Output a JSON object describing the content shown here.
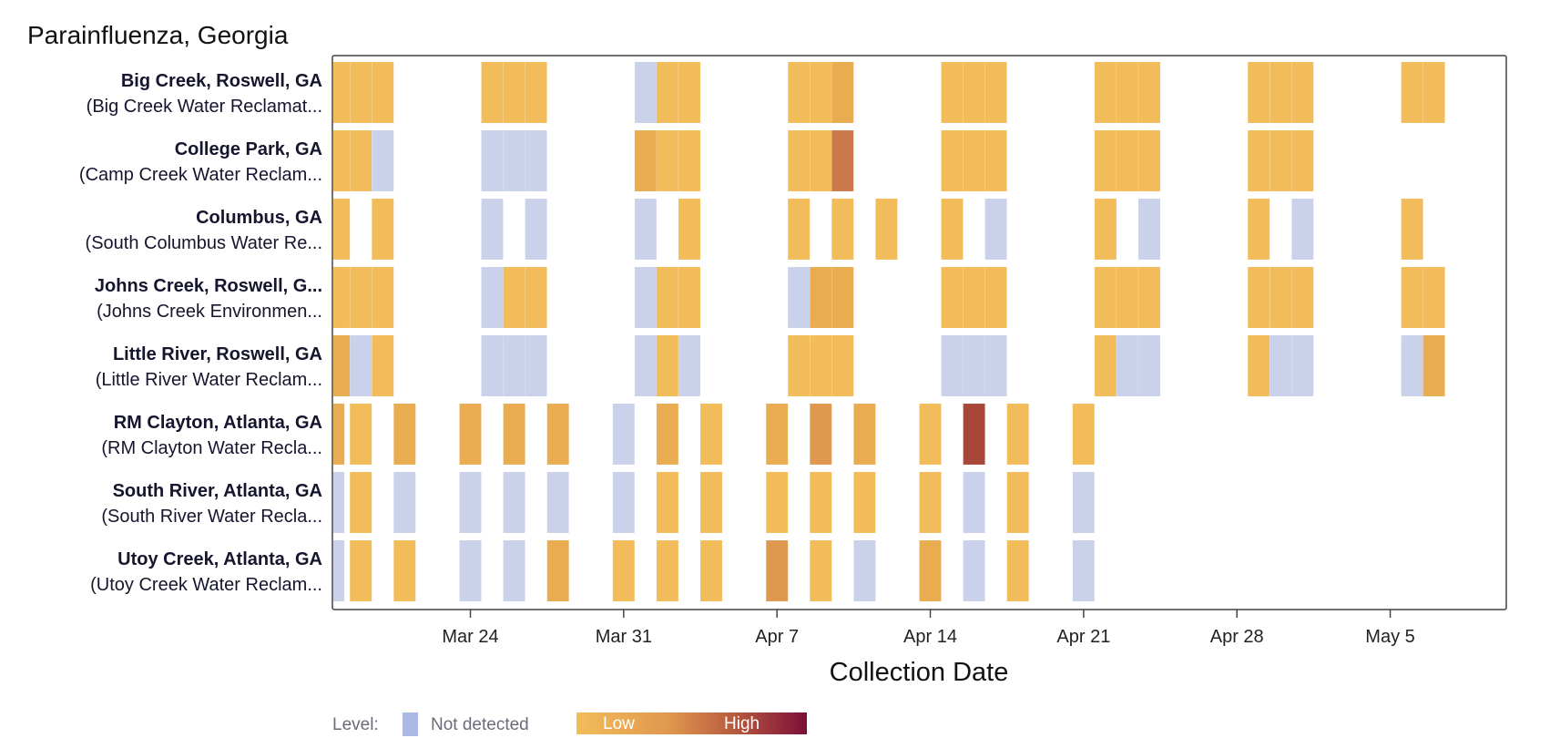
{
  "chart_data": {
    "type": "heatmap",
    "title": "Parainfluenza, Georgia",
    "xlabel": "Collection Date",
    "ylabel": "",
    "x_ticks": [
      "Mar 24",
      "Mar 31",
      "Apr 7",
      "Apr 14",
      "Apr 21",
      "Apr 28",
      "May 5"
    ],
    "x_range_days": [
      -6.3,
      47.3
    ],
    "x_origin": "Mar 24",
    "legend": {
      "label": "Level:",
      "not_detected": "Not detected",
      "low": "Low",
      "high": "High"
    },
    "colors": {
      "not_detected": "#c9d2ea",
      "low": "#f2bc5a",
      "mid1": "#e9ac50",
      "mid2": "#e09850",
      "mid3": "#c9794a",
      "high": "#a8463a",
      "legend_nd": "#a9b9e3",
      "legend_high": "#7b0f3a",
      "frame": "#444444"
    },
    "sites": [
      {
        "name": "Big Creek, Roswell, GA",
        "facility": "(Big Creek Water Reclamat...",
        "cells": [
          [
            -6,
            1
          ],
          [
            -5,
            1
          ],
          [
            -4,
            1
          ],
          [
            1,
            1
          ],
          [
            2,
            1
          ],
          [
            3,
            1
          ],
          [
            8,
            0
          ],
          [
            9,
            1
          ],
          [
            10,
            1
          ],
          [
            15,
            1
          ],
          [
            16,
            1
          ],
          [
            17,
            2
          ],
          [
            22,
            1
          ],
          [
            23,
            1
          ],
          [
            24,
            1
          ],
          [
            29,
            1
          ],
          [
            30,
            1
          ],
          [
            31,
            1
          ],
          [
            36,
            1
          ],
          [
            37,
            1
          ],
          [
            38,
            1
          ],
          [
            43,
            1
          ],
          [
            44,
            1
          ]
        ]
      },
      {
        "name": "College Park, GA",
        "facility": "(Camp Creek Water Reclam...",
        "cells": [
          [
            -6,
            1
          ],
          [
            -5,
            1
          ],
          [
            -4,
            0
          ],
          [
            1,
            0
          ],
          [
            2,
            0
          ],
          [
            3,
            0
          ],
          [
            8,
            2
          ],
          [
            9,
            1
          ],
          [
            10,
            1
          ],
          [
            15,
            1
          ],
          [
            16,
            1
          ],
          [
            17,
            4
          ],
          [
            22,
            1
          ],
          [
            23,
            1
          ],
          [
            24,
            1
          ],
          [
            29,
            1
          ],
          [
            30,
            1
          ],
          [
            31,
            1
          ],
          [
            36,
            1
          ],
          [
            37,
            1
          ],
          [
            38,
            1
          ]
        ]
      },
      {
        "name": "Columbus, GA",
        "facility": "(South Columbus Water Re...",
        "cells": [
          [
            -6,
            1
          ],
          [
            -4,
            1
          ],
          [
            1,
            0
          ],
          [
            3,
            0
          ],
          [
            8,
            0
          ],
          [
            10,
            1
          ],
          [
            15,
            1
          ],
          [
            17,
            1
          ],
          [
            19,
            1
          ],
          [
            22,
            1
          ],
          [
            24,
            0
          ],
          [
            29,
            1
          ],
          [
            31,
            0
          ],
          [
            36,
            1
          ],
          [
            38,
            0
          ],
          [
            43,
            1
          ]
        ]
      },
      {
        "name": "Johns Creek, Roswell, G...",
        "facility": "(Johns Creek Environmen...",
        "cells": [
          [
            -6,
            1
          ],
          [
            -5,
            1
          ],
          [
            -4,
            1
          ],
          [
            1,
            0
          ],
          [
            2,
            1
          ],
          [
            3,
            1
          ],
          [
            8,
            0
          ],
          [
            9,
            1
          ],
          [
            10,
            1
          ],
          [
            15,
            0
          ],
          [
            16,
            2
          ],
          [
            17,
            2
          ],
          [
            22,
            1
          ],
          [
            23,
            1
          ],
          [
            24,
            1
          ],
          [
            29,
            1
          ],
          [
            30,
            1
          ],
          [
            31,
            1
          ],
          [
            36,
            1
          ],
          [
            37,
            1
          ],
          [
            38,
            1
          ],
          [
            43,
            1
          ],
          [
            44,
            1
          ]
        ]
      },
      {
        "name": "Little River, Roswell, GA",
        "facility": "(Little River Water Reclam...",
        "cells": [
          [
            -6,
            2
          ],
          [
            -5,
            0
          ],
          [
            -4,
            1
          ],
          [
            1,
            0
          ],
          [
            2,
            0
          ],
          [
            3,
            0
          ],
          [
            8,
            0
          ],
          [
            9,
            1
          ],
          [
            10,
            0
          ],
          [
            15,
            1
          ],
          [
            16,
            1
          ],
          [
            17,
            1
          ],
          [
            22,
            0
          ],
          [
            23,
            0
          ],
          [
            24,
            0
          ],
          [
            29,
            1
          ],
          [
            30,
            0
          ],
          [
            31,
            0
          ],
          [
            36,
            1
          ],
          [
            37,
            0
          ],
          [
            38,
            0
          ],
          [
            43,
            0
          ],
          [
            44,
            2
          ]
        ]
      },
      {
        "name": "RM Clayton, Atlanta, GA",
        "facility": "(RM Clayton Water Recla...",
        "cells": [
          [
            -6.25,
            2
          ],
          [
            -5,
            1
          ],
          [
            -3,
            2
          ],
          [
            0,
            2
          ],
          [
            2,
            2
          ],
          [
            4,
            2
          ],
          [
            7,
            0
          ],
          [
            9,
            2
          ],
          [
            11,
            1
          ],
          [
            14,
            2
          ],
          [
            16,
            3
          ],
          [
            18,
            2
          ],
          [
            21,
            1
          ],
          [
            23,
            5
          ],
          [
            25,
            1
          ],
          [
            28,
            1
          ]
        ]
      },
      {
        "name": "South River, Atlanta, GA",
        "facility": "(South River Water Recla...",
        "cells": [
          [
            -6.25,
            0
          ],
          [
            -5,
            1
          ],
          [
            -3,
            0
          ],
          [
            0,
            0
          ],
          [
            2,
            0
          ],
          [
            4,
            0
          ],
          [
            7,
            0
          ],
          [
            9,
            1
          ],
          [
            11,
            1
          ],
          [
            14,
            1
          ],
          [
            16,
            1
          ],
          [
            18,
            1
          ],
          [
            21,
            1
          ],
          [
            23,
            0
          ],
          [
            25,
            1
          ],
          [
            28,
            0
          ]
        ]
      },
      {
        "name": "Utoy Creek, Atlanta, GA",
        "facility": "(Utoy Creek Water Reclam...",
        "cells": [
          [
            -6.25,
            0
          ],
          [
            -5,
            1
          ],
          [
            -3,
            1
          ],
          [
            0,
            0
          ],
          [
            2,
            0
          ],
          [
            4,
            2
          ],
          [
            7,
            1
          ],
          [
            9,
            1
          ],
          [
            11,
            1
          ],
          [
            14,
            3
          ],
          [
            16,
            1
          ],
          [
            18,
            0
          ],
          [
            21,
            2
          ],
          [
            23,
            0
          ],
          [
            25,
            1
          ],
          [
            28,
            0
          ]
        ]
      }
    ]
  }
}
